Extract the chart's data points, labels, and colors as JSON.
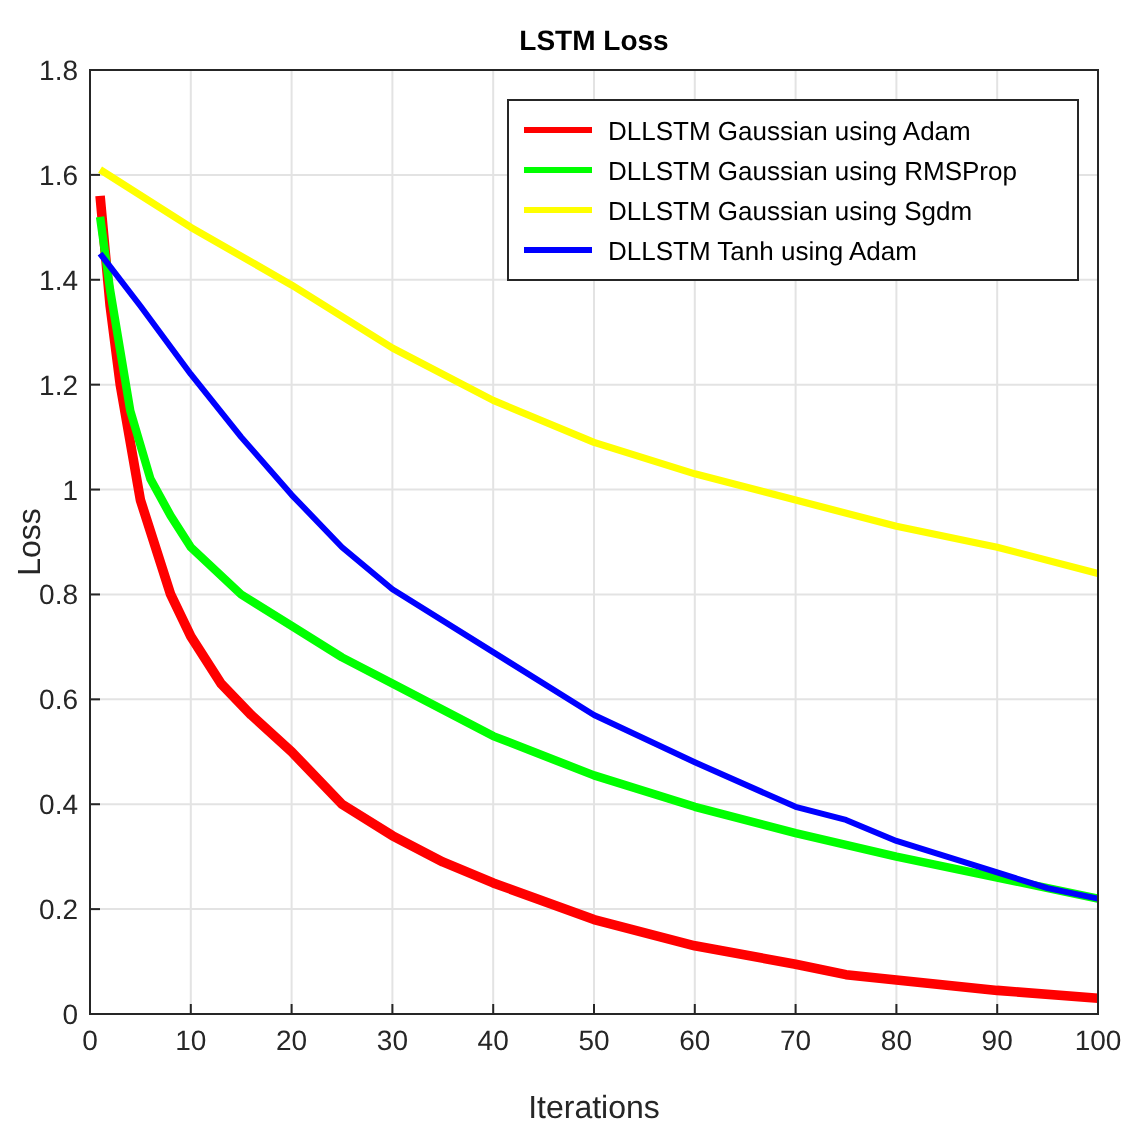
{
  "chart_data": {
    "type": "line",
    "title": "LSTM Loss",
    "xlabel": "Iterations",
    "ylabel": "Loss",
    "xlim": [
      0,
      100
    ],
    "xticks": [
      0,
      10,
      20,
      30,
      40,
      50,
      60,
      70,
      80,
      90,
      100
    ],
    "ylim": [
      0,
      1.8
    ],
    "yticks": [
      0,
      0.2,
      0.4,
      0.6,
      0.8,
      1,
      1.2,
      1.4,
      1.6,
      1.8
    ],
    "grid": true,
    "legend": "top right",
    "marker": "none",
    "line_style": "solid",
    "series": [
      {
        "name": "DLLSTM Gaussian using Adam",
        "color": "#ff0000",
        "x": [
          1,
          2,
          3,
          5,
          8,
          10,
          13,
          16,
          20,
          25,
          30,
          35,
          40,
          50,
          60,
          70,
          75,
          80,
          90,
          100
        ],
        "values": [
          1.56,
          1.35,
          1.2,
          0.98,
          0.8,
          0.72,
          0.63,
          0.57,
          0.5,
          0.4,
          0.34,
          0.29,
          0.25,
          0.18,
          0.13,
          0.095,
          0.075,
          0.065,
          0.045,
          0.03
        ]
      },
      {
        "name": "DLLSTM Gaussian using RMSProp",
        "color": "#00ff00",
        "x": [
          1,
          2,
          4,
          6,
          8,
          10,
          15,
          20,
          25,
          30,
          40,
          50,
          60,
          70,
          80,
          90,
          100
        ],
        "values": [
          1.52,
          1.38,
          1.15,
          1.02,
          0.95,
          0.89,
          0.8,
          0.74,
          0.68,
          0.63,
          0.53,
          0.455,
          0.395,
          0.345,
          0.3,
          0.26,
          0.22
        ]
      },
      {
        "name": "DLLSTM Gaussian using Sgdm",
        "color": "#ffff00",
        "x": [
          1,
          10,
          20,
          30,
          40,
          50,
          60,
          70,
          80,
          90,
          100
        ],
        "values": [
          1.61,
          1.5,
          1.39,
          1.27,
          1.17,
          1.09,
          1.03,
          0.98,
          0.93,
          0.89,
          0.84
        ]
      },
      {
        "name": "DLLSTM Tanh using Adam",
        "color": "#0000ff",
        "x": [
          1,
          5,
          10,
          15,
          20,
          25,
          30,
          40,
          50,
          60,
          70,
          75,
          80,
          90,
          95,
          100
        ],
        "values": [
          1.45,
          1.35,
          1.22,
          1.1,
          0.99,
          0.89,
          0.81,
          0.69,
          0.57,
          0.48,
          0.395,
          0.37,
          0.33,
          0.27,
          0.24,
          0.22
        ]
      }
    ]
  }
}
